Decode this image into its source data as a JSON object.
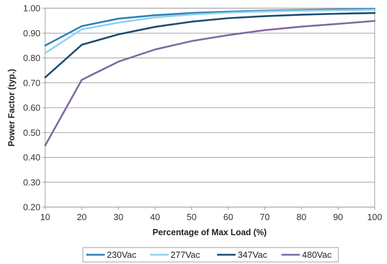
{
  "chart_data": {
    "type": "line",
    "xlabel": "Percentage of Max Load (%)",
    "ylabel": "Power Factor (typ.)",
    "x": [
      10,
      20,
      30,
      40,
      50,
      60,
      70,
      80,
      90,
      100
    ],
    "xlim": [
      10,
      100
    ],
    "ylim": [
      0.2,
      1.0
    ],
    "xticks": [
      "10",
      "20",
      "30",
      "40",
      "50",
      "60",
      "70",
      "80",
      "90",
      "100"
    ],
    "yticks": [
      "0.20",
      "0.30",
      "0.40",
      "0.50",
      "0.60",
      "0.70",
      "0.80",
      "0.90",
      "1.00"
    ],
    "grid": true,
    "legend_position": "bottom",
    "series": [
      {
        "name": "230Vac",
        "color": "#2e7fb8",
        "values": [
          0.85,
          0.928,
          0.958,
          0.972,
          0.981,
          0.986,
          0.99,
          0.993,
          0.995,
          0.997
        ]
      },
      {
        "name": "277Vac",
        "color": "#8fd1f0",
        "values": [
          0.82,
          0.915,
          0.942,
          0.963,
          0.975,
          0.982,
          0.987,
          0.99,
          0.992,
          0.994
        ]
      },
      {
        "name": "347Vac",
        "color": "#1b4a6e",
        "values": [
          0.722,
          0.853,
          0.895,
          0.925,
          0.946,
          0.96,
          0.968,
          0.974,
          0.978,
          0.981
        ]
      },
      {
        "name": "480Vac",
        "color": "#8068a2",
        "values": [
          0.448,
          0.712,
          0.785,
          0.834,
          0.868,
          0.892,
          0.912,
          0.926,
          0.937,
          0.949
        ]
      }
    ]
  }
}
